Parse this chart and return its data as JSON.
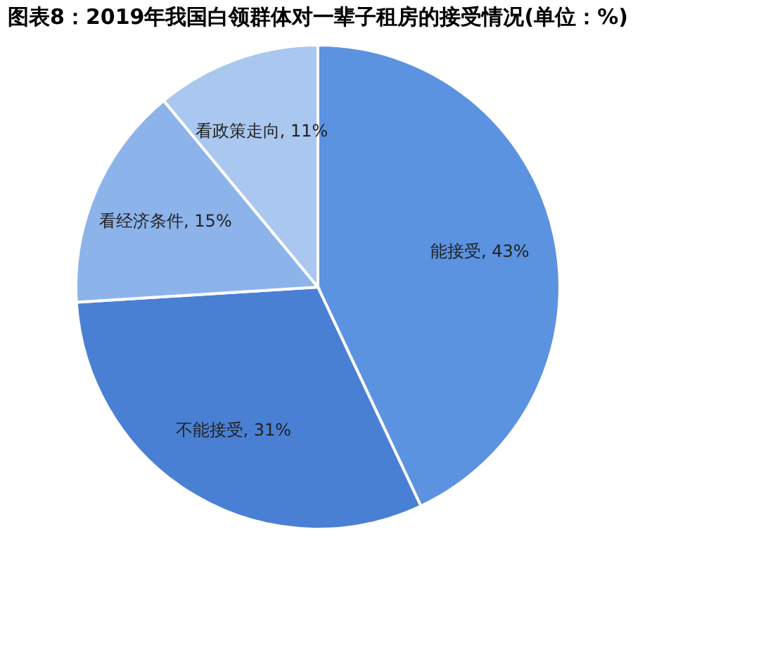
{
  "chart_data": {
    "type": "pie",
    "title": "图表8：2019年我国白领群体对一辈子租房的接受情况(单位：%)",
    "categories": [
      "能接受",
      "不能接受",
      "看经济条件",
      "看政策走向"
    ],
    "values": [
      43,
      31,
      15,
      11
    ],
    "colors": [
      "#5b93e0",
      "#4a80d4",
      "#8cb4ea",
      "#a9c7ef"
    ],
    "value_labels": [
      "43%",
      "31%",
      "15%",
      "11%"
    ],
    "legend": false
  }
}
